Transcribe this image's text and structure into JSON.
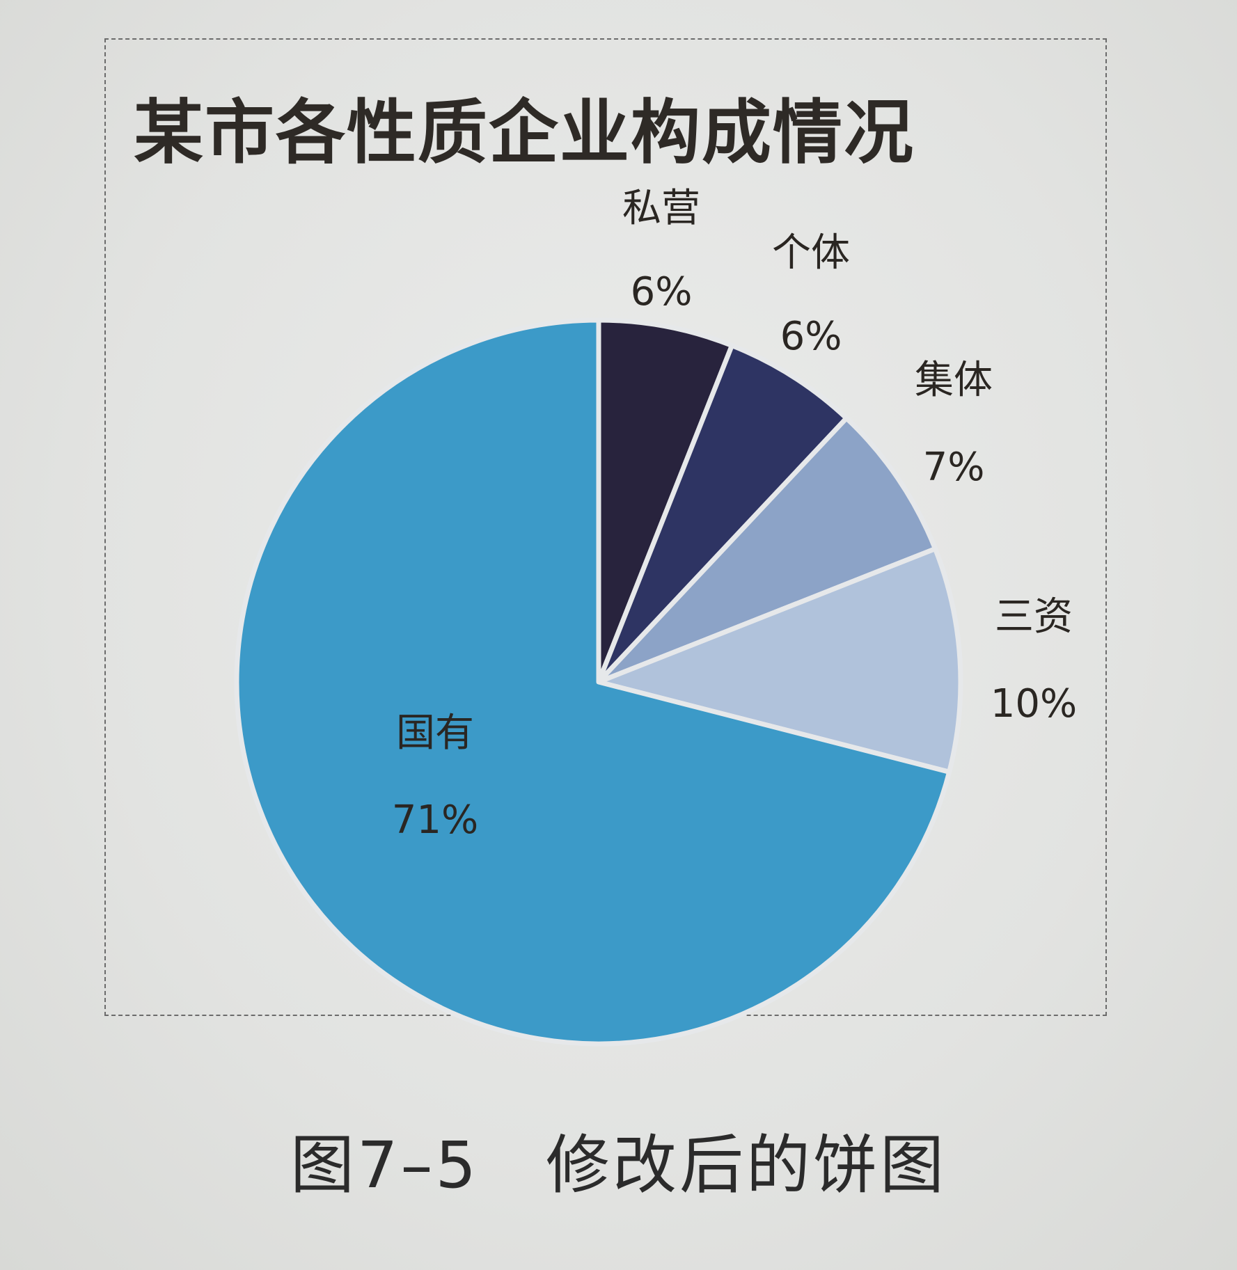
{
  "chart_data": {
    "type": "pie",
    "title": "某市各性质企业构成情况",
    "start_angle_deg": 0,
    "direction": "clockwise",
    "slices": [
      {
        "label": "私营",
        "value": 6,
        "value_label": "6%",
        "color": "#28233d"
      },
      {
        "label": "个体",
        "value": 6,
        "value_label": "6%",
        "color": "#2e3463"
      },
      {
        "label": "集体",
        "value": 7,
        "value_label": "7%",
        "color": "#8ca3c7"
      },
      {
        "label": "三资",
        "value": 10,
        "value_label": "10%",
        "color": "#b0c2db"
      },
      {
        "label": "国有",
        "value": 71,
        "value_label": "71%",
        "color": "#3c9ac8"
      }
    ],
    "slice_border_color": "#e6e8ea",
    "legend": "none",
    "label_position": "outside (inside for 国有)"
  },
  "caption": "图7–5　修改后的饼图"
}
